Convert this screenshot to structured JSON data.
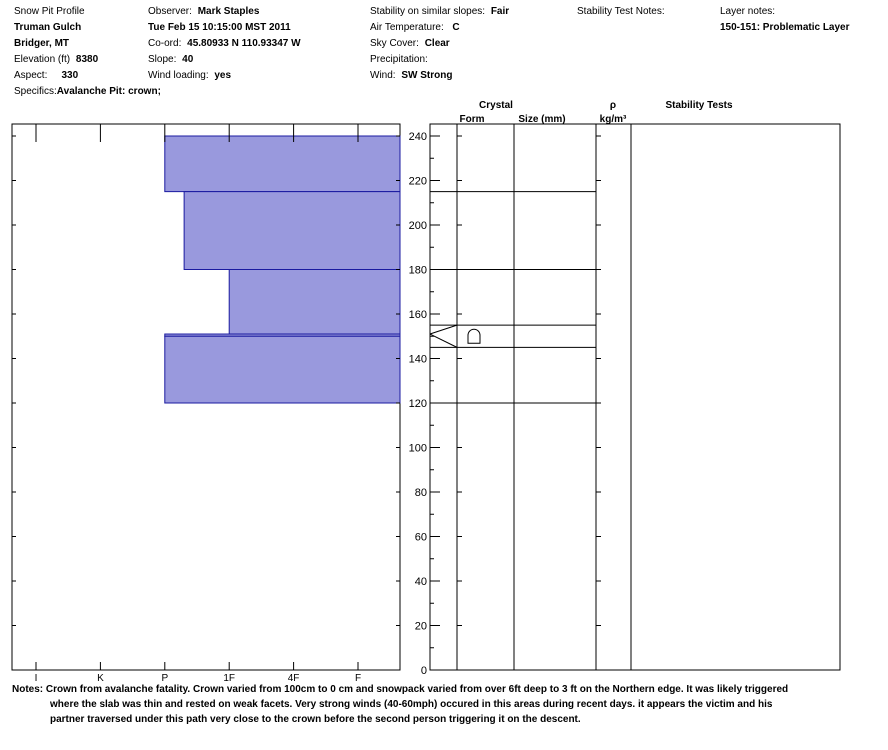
{
  "header": {
    "col1": [
      "Snow Pit Profile",
      "Truman Gulch",
      "Bridger, MT"
    ],
    "elevation": {
      "label": "Elevation (ft)",
      "value": "8380"
    },
    "aspect": {
      "label": "Aspect:",
      "value": "330"
    },
    "specifics": {
      "label": "Specifics:",
      "value": "Avalanche Pit: crown;"
    },
    "observer": {
      "label": "Observer:",
      "value": "Mark Staples"
    },
    "date": "Tue Feb 15 10:15:00 MST 2011",
    "coord": {
      "label": "Co-ord:",
      "value": "45.80933 N 110.93347 W"
    },
    "slope": {
      "label": "Slope:",
      "value": "40"
    },
    "wind_loading": {
      "label": "Wind loading:",
      "value": "yes"
    },
    "stability": {
      "label": "Stability on similar slopes:",
      "value": "Fair"
    },
    "air_temp": {
      "label": "Air Temperature:",
      "value": "C"
    },
    "sky_cover": {
      "label": "Sky Cover:",
      "value": "Clear"
    },
    "precip": {
      "label": "Precipitation:",
      "value": ""
    },
    "wind": {
      "label": "Wind:",
      "value": "SW Strong"
    },
    "stability_test_notes": {
      "label": "Stability Test Notes:",
      "value": ""
    },
    "layer_notes": {
      "label": "Layer notes:",
      "value": "150-151: Problematic Layer"
    }
  },
  "columns": {
    "crystal": "Crystal",
    "form": "Form",
    "size": "Size (mm)",
    "rho": "ρ",
    "rho_unit": "kg/m³",
    "stability_tests": "Stability Tests"
  },
  "notes": {
    "label": "Notes:",
    "line1": "Crown from avalanche fatality. Crown varied from 100cm to 0 cm and snowpack varied from over 6ft deep to 3 ft on the Northern edge.  It was likely triggered",
    "line2": "where the slab was thin and rested on weak facets.  Very strong winds (40-60mph) occured in this areas during recent days.  it appears the victim and his",
    "line3": "partner traversed under this path very close to the crown before the second person triggering it on the descent."
  },
  "chart_data": {
    "type": "bar",
    "orientation": "horizontal",
    "x_categories": [
      "I",
      "K",
      "P",
      "1F",
      "4F",
      "F"
    ],
    "y_ticks": [
      0,
      20,
      40,
      60,
      80,
      100,
      120,
      140,
      160,
      180,
      200,
      220,
      240
    ],
    "ylim": [
      0,
      240
    ],
    "hardness_layers": [
      {
        "top": 240,
        "bottom": 215,
        "hardness": 2.0
      },
      {
        "top": 215,
        "bottom": 180,
        "hardness": 2.3
      },
      {
        "top": 180,
        "bottom": 151,
        "hardness": 3.0
      },
      {
        "top": 151,
        "bottom": 150,
        "hardness": 2.0
      },
      {
        "top": 150,
        "bottom": 120,
        "hardness": 2.0
      }
    ],
    "layer_boundaries": [
      215,
      180,
      155,
      145,
      120
    ],
    "crystal_symbol_height": 150,
    "bar_color": "#9999dd",
    "bar_stroke": "#1a1aa0"
  }
}
